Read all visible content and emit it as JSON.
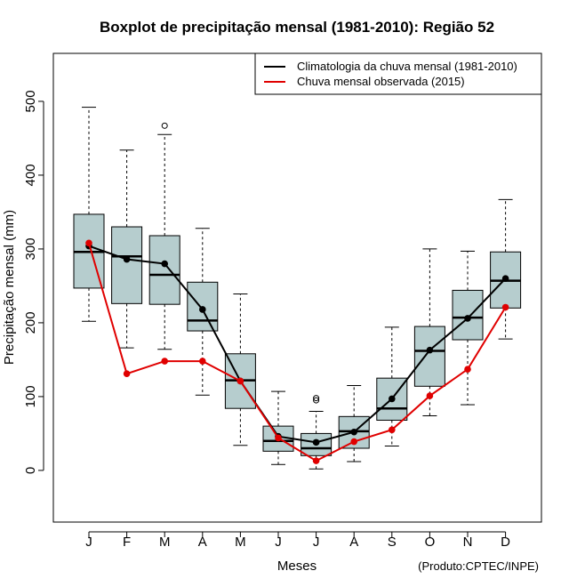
{
  "chart_data": {
    "type": "boxplot",
    "title": "Boxplot de precipitação mensal (1981-2010): Região 52",
    "xlabel": "Meses",
    "ylabel": "Precipitação mensal (mm)",
    "credit": "(Produto:CPTEC/INPE)",
    "ylim": [
      -70,
      565
    ],
    "yticks": [
      0,
      100,
      200,
      300,
      400,
      500
    ],
    "categories": [
      "J",
      "F",
      "M",
      "A",
      "M",
      "J",
      "J",
      "A",
      "S",
      "O",
      "N",
      "D"
    ],
    "box_color": "#b6cdce",
    "boxes": [
      {
        "whisker_low": 202,
        "q1": 247,
        "median": 296,
        "q3": 347,
        "whisker_high": 492,
        "outliers": []
      },
      {
        "whisker_low": 166,
        "q1": 226,
        "median": 290,
        "q3": 330,
        "whisker_high": 434,
        "outliers": []
      },
      {
        "whisker_low": 164,
        "q1": 225,
        "median": 265,
        "q3": 318,
        "whisker_high": 455,
        "outliers": [
          467
        ]
      },
      {
        "whisker_low": 102,
        "q1": 189,
        "median": 203,
        "q3": 255,
        "whisker_high": 328,
        "outliers": []
      },
      {
        "whisker_low": 34,
        "q1": 84,
        "median": 122,
        "q3": 158,
        "whisker_high": 239,
        "outliers": []
      },
      {
        "whisker_low": 8,
        "q1": 26,
        "median": 40,
        "q3": 60,
        "whisker_high": 107,
        "outliers": []
      },
      {
        "whisker_low": 2,
        "q1": 20,
        "median": 30,
        "q3": 50,
        "whisker_high": 80,
        "outliers": [
          95,
          98
        ]
      },
      {
        "whisker_low": 12,
        "q1": 30,
        "median": 53,
        "q3": 73,
        "whisker_high": 115,
        "outliers": []
      },
      {
        "whisker_low": 33,
        "q1": 68,
        "median": 84,
        "q3": 125,
        "whisker_high": 194,
        "outliers": []
      },
      {
        "whisker_low": 74,
        "q1": 114,
        "median": 162,
        "q3": 195,
        "whisker_high": 300,
        "outliers": []
      },
      {
        "whisker_low": 89,
        "q1": 177,
        "median": 207,
        "q3": 244,
        "whisker_high": 297,
        "outliers": []
      },
      {
        "whisker_low": 178,
        "q1": 220,
        "median": 257,
        "q3": 296,
        "whisker_high": 367,
        "outliers": []
      }
    ],
    "series": [
      {
        "name": "Climatologia da chuva mensal (1981-2010)",
        "color": "#000000",
        "values": [
          304,
          286,
          280,
          218,
          121,
          46,
          38,
          52,
          97,
          163,
          206,
          260
        ]
      },
      {
        "name": "Chuva mensal observada (2015)",
        "color": "#e00000",
        "values": [
          308,
          131,
          148,
          148,
          121,
          44,
          13,
          39,
          55,
          101,
          137,
          221
        ]
      }
    ],
    "legend_position": "top-right",
    "grid": false
  }
}
